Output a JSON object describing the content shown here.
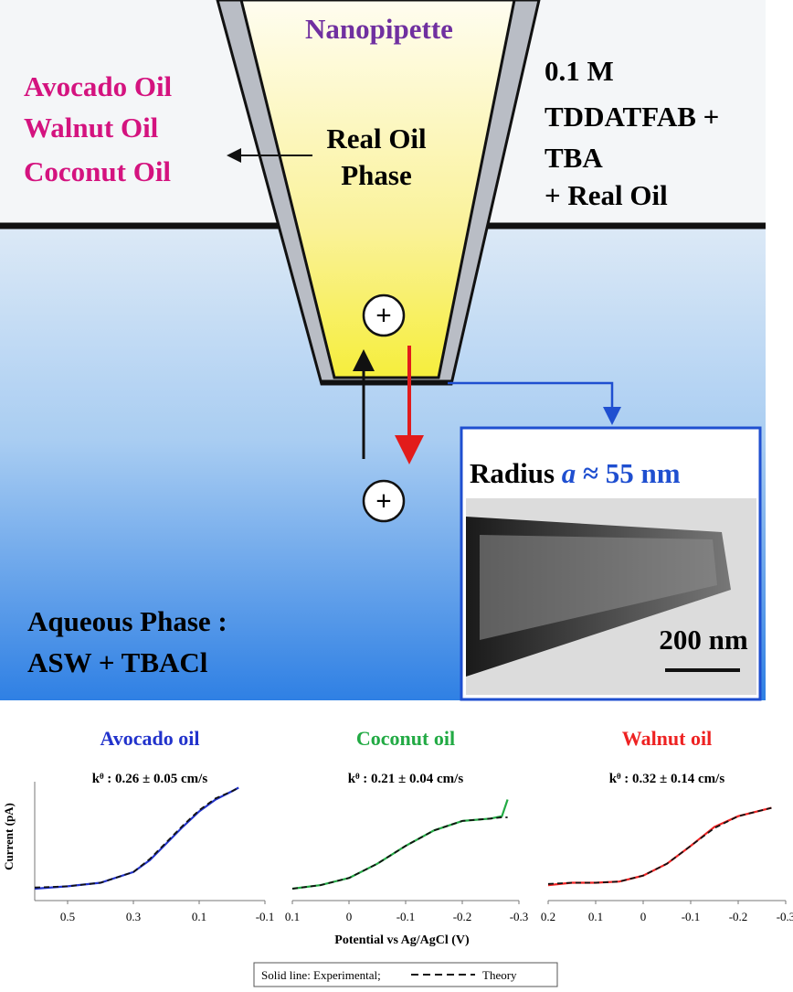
{
  "diagram": {
    "pipette_label": "Nanopipette",
    "oils": [
      "Avocado Oil",
      "Walnut Oil",
      "Coconut Oil"
    ],
    "inner_label": [
      "Real Oil",
      "Phase"
    ],
    "solution": [
      "0.1 M",
      "TDDATFAB +",
      "TBA",
      "+ Real Oil"
    ],
    "ions": [
      "+",
      "+"
    ],
    "inset": {
      "title_prefix": "Radius",
      "title_var": "a",
      "title_suffix": "≈ 55 nm",
      "scale": "200 nm"
    },
    "aqueous": [
      "Aqueous Phase :",
      "ASW + TBACl"
    ]
  },
  "shared_axes": {
    "x_label": "Potential vs Ag/AgCl (V)",
    "y_label": "Current (pA)"
  },
  "legend": {
    "solid_label": "Solid line: Experimental;",
    "dashed_label": "Theory"
  },
  "chart_data": [
    {
      "type": "line",
      "title": "Avocado oil",
      "title_color": "#2233cc",
      "annotation": "kᶿ : 0.26 ± 0.05 cm/s",
      "x": [
        0.6,
        0.5,
        0.4,
        0.3,
        0.25,
        0.2,
        0.15,
        0.1,
        0.05,
        0,
        -0.02
      ],
      "series": [
        {
          "color": "#2233cc",
          "style": "solid",
          "values": [
            0.1,
            0.12,
            0.15,
            0.24,
            0.34,
            0.48,
            0.62,
            0.75,
            0.85,
            0.92,
            0.95
          ]
        },
        {
          "color": "#111111",
          "style": "dashed",
          "values": [
            0.11,
            0.12,
            0.15,
            0.24,
            0.35,
            0.49,
            0.63,
            0.76,
            0.86,
            0.92,
            0.95
          ]
        }
      ],
      "xlim": [
        0.6,
        -0.1
      ],
      "xticks": [
        0.5,
        0.3,
        0.1,
        -0.1
      ],
      "ylim": [
        0,
        1
      ],
      "left_axis": true
    },
    {
      "type": "line",
      "title": "Coconut oil",
      "title_color": "#22aa44",
      "annotation": "kᶿ : 0.21 ± 0.04 cm/s",
      "x": [
        0.1,
        0.05,
        0,
        -0.05,
        -0.1,
        -0.15,
        -0.2,
        -0.25,
        -0.27,
        -0.28
      ],
      "series": [
        {
          "color": "#22aa44",
          "style": "solid",
          "values": [
            0.1,
            0.13,
            0.19,
            0.31,
            0.46,
            0.59,
            0.67,
            0.69,
            0.71,
            0.85
          ]
        },
        {
          "color": "#111111",
          "style": "dashed",
          "values": [
            0.1,
            0.13,
            0.19,
            0.31,
            0.46,
            0.59,
            0.67,
            0.69,
            0.7,
            0.7
          ]
        }
      ],
      "xlim": [
        0.1,
        -0.3
      ],
      "xticks": [
        0.1,
        0,
        -0.1,
        -0.2,
        -0.3
      ],
      "ylim": [
        0,
        1
      ],
      "left_axis": false
    },
    {
      "type": "line",
      "title": "Walnut oil",
      "title_color": "#ee2222",
      "annotation": "kᶿ : 0.32 ± 0.14 cm/s",
      "x": [
        0.2,
        0.15,
        0.1,
        0.05,
        0,
        -0.05,
        -0.1,
        -0.15,
        -0.2,
        -0.25,
        -0.27
      ],
      "series": [
        {
          "color": "#ee2222",
          "style": "solid",
          "values": [
            0.13,
            0.15,
            0.15,
            0.16,
            0.21,
            0.31,
            0.46,
            0.62,
            0.71,
            0.76,
            0.78
          ]
        },
        {
          "color": "#111111",
          "style": "dashed",
          "values": [
            0.14,
            0.15,
            0.15,
            0.16,
            0.21,
            0.31,
            0.46,
            0.61,
            0.71,
            0.76,
            0.78
          ]
        }
      ],
      "xlim": [
        0.2,
        -0.3
      ],
      "xticks": [
        0.2,
        0.1,
        0,
        -0.1,
        -0.2,
        -0.3
      ],
      "ylim": [
        0,
        1
      ],
      "left_axis": false
    }
  ]
}
